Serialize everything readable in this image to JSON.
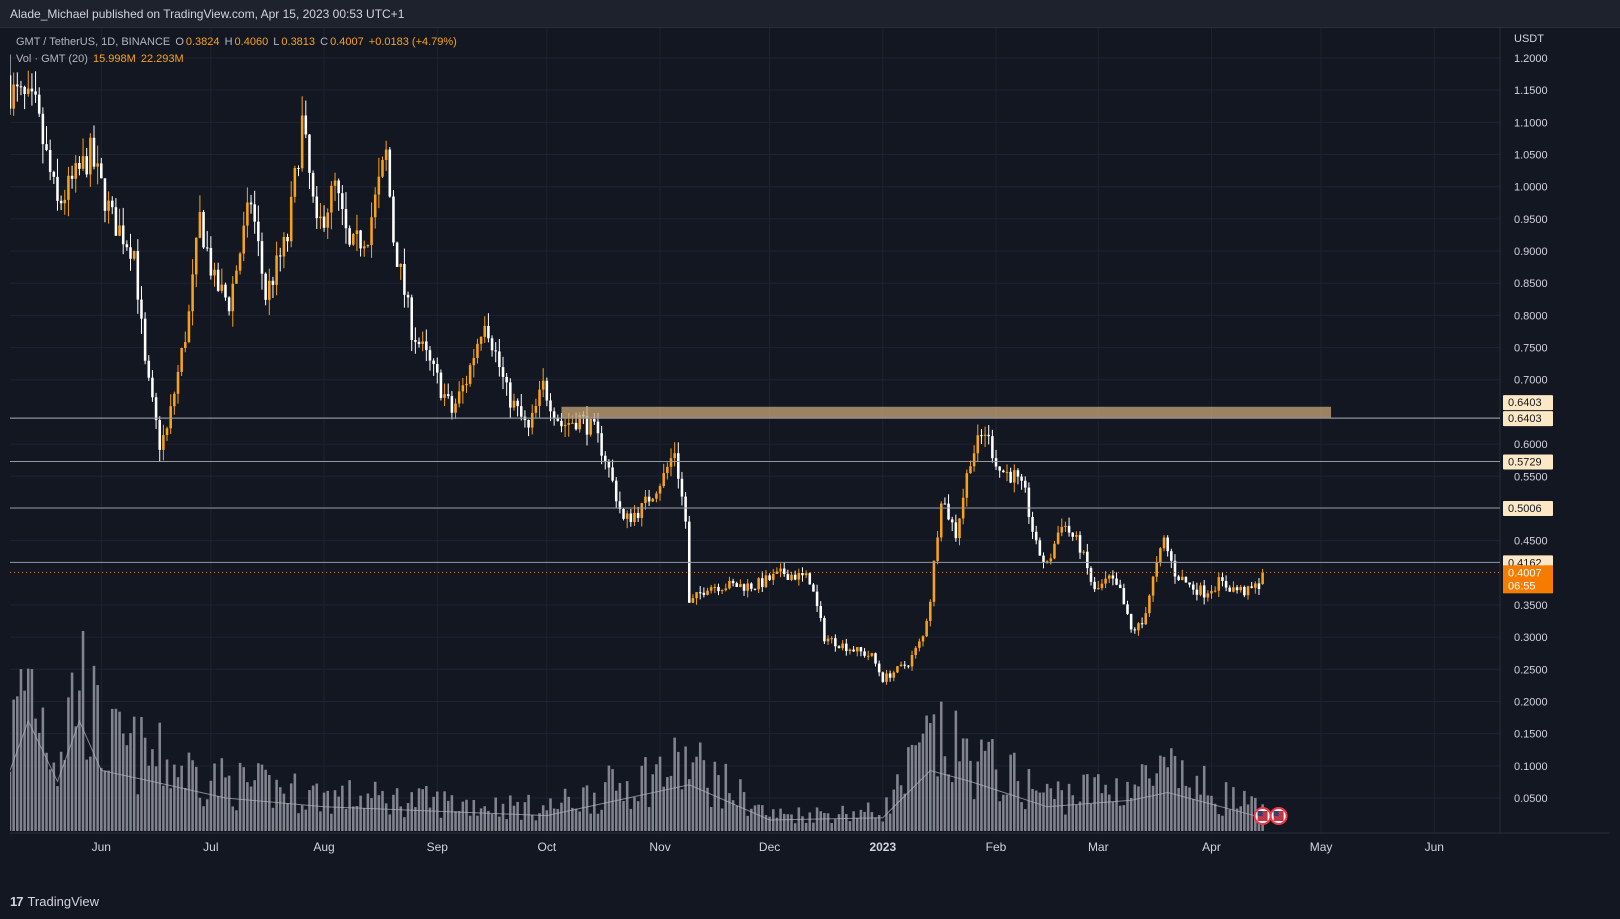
{
  "header": {
    "publish_line": "Alade_Michael published on TradingView.com, Apr 15, 2023 00:53 UTC+1"
  },
  "legend": {
    "symbol": "GMT / TetherUS, 1D, BINANCE",
    "open_label": "O",
    "open": "0.3824",
    "high_label": "H",
    "high": "0.4060",
    "low_label": "L",
    "low": "0.3813",
    "close_label": "C",
    "close": "0.4007",
    "change": "+0.0183 (+4.79%)",
    "volume_label": "Vol · GMT (20)",
    "volume_value": "15.998M",
    "volume_ma": "22.293M"
  },
  "footer": {
    "brand": "TradingView",
    "brand_mark": "17"
  },
  "colors": {
    "background": "#131722",
    "up": "#f7a21b",
    "down": "#ffffff",
    "grid": "#1f2330",
    "zone": "#c8a77a",
    "level_line": "#9598a1",
    "current_price": "#f57c00"
  },
  "chart_data": {
    "type": "candlestick",
    "symbol": "GMT / TetherUS",
    "interval": "1D",
    "exchange": "BINANCE",
    "currency": "USDT",
    "y_axis": {
      "ticks": [
        "1.2000",
        "1.1500",
        "1.1000",
        "1.0500",
        "1.0000",
        "0.9500",
        "0.9000",
        "0.8500",
        "0.8000",
        "0.7500",
        "0.7000",
        "0.6000",
        "0.5500",
        "0.5000",
        "0.4500",
        "0.3500",
        "0.3000",
        "0.2500",
        "0.2000",
        "0.1500",
        "0.1000",
        "0.0500"
      ],
      "range": [
        0,
        1.26
      ]
    },
    "x_axis": {
      "ticks": [
        {
          "label": "Jun",
          "date": "2022-06-01"
        },
        {
          "label": "Jul",
          "date": "2022-07-01"
        },
        {
          "label": "Aug",
          "date": "2022-08-01"
        },
        {
          "label": "Sep",
          "date": "2022-09-01"
        },
        {
          "label": "Oct",
          "date": "2022-10-01"
        },
        {
          "label": "Nov",
          "date": "2022-11-01"
        },
        {
          "label": "Dec",
          "date": "2022-12-01"
        },
        {
          "label": "2023",
          "date": "2023-01-01"
        },
        {
          "label": "Feb",
          "date": "2023-02-01"
        },
        {
          "label": "Mar",
          "date": "2023-03-01"
        },
        {
          "label": "Apr",
          "date": "2023-04-01"
        },
        {
          "label": "May",
          "date": "2023-05-01"
        },
        {
          "label": "Jun",
          "date": "2023-06-01"
        }
      ],
      "range": [
        "2022-05-07",
        "2023-06-19"
      ]
    },
    "series_start_date": "2022-05-07",
    "series_end_date": "2023-04-15",
    "price_path": [
      {
        "date": "2022-05-07",
        "close": 1.15
      },
      {
        "date": "2022-05-14",
        "close": 1.12
      },
      {
        "date": "2022-05-20",
        "close": 0.97
      },
      {
        "date": "2022-05-29",
        "close": 1.05
      },
      {
        "date": "2022-06-04",
        "close": 0.95
      },
      {
        "date": "2022-06-10",
        "close": 0.9
      },
      {
        "date": "2022-06-13",
        "close": 0.72
      },
      {
        "date": "2022-06-17",
        "close": 0.6
      },
      {
        "date": "2022-06-19",
        "close": 0.62
      },
      {
        "date": "2022-06-25",
        "close": 0.8
      },
      {
        "date": "2022-06-28",
        "close": 0.95
      },
      {
        "date": "2022-07-02",
        "close": 0.85
      },
      {
        "date": "2022-07-06",
        "close": 0.82
      },
      {
        "date": "2022-07-12",
        "close": 0.98
      },
      {
        "date": "2022-07-16",
        "close": 0.83
      },
      {
        "date": "2022-07-22",
        "close": 0.92
      },
      {
        "date": "2022-07-26",
        "close": 1.1
      },
      {
        "date": "2022-07-30",
        "close": 0.93
      },
      {
        "date": "2022-08-04",
        "close": 1.0
      },
      {
        "date": "2022-08-08",
        "close": 0.9
      },
      {
        "date": "2022-08-13",
        "close": 0.93
      },
      {
        "date": "2022-08-18",
        "close": 1.05
      },
      {
        "date": "2022-08-20",
        "close": 0.92
      },
      {
        "date": "2022-08-25",
        "close": 0.78
      },
      {
        "date": "2022-09-01",
        "close": 0.7
      },
      {
        "date": "2022-09-05",
        "close": 0.65
      },
      {
        "date": "2022-09-09",
        "close": 0.7
      },
      {
        "date": "2022-09-14",
        "close": 0.8
      },
      {
        "date": "2022-09-20",
        "close": 0.68
      },
      {
        "date": "2022-09-26",
        "close": 0.62
      },
      {
        "date": "2022-09-30",
        "close": 0.69
      },
      {
        "date": "2022-10-05",
        "close": 0.63
      },
      {
        "date": "2022-10-10",
        "close": 0.64
      },
      {
        "date": "2022-10-14",
        "close": 0.62
      },
      {
        "date": "2022-10-17",
        "close": 0.58
      },
      {
        "date": "2022-10-22",
        "close": 0.48
      },
      {
        "date": "2022-10-27",
        "close": 0.5
      },
      {
        "date": "2022-11-02",
        "close": 0.55
      },
      {
        "date": "2022-11-05",
        "close": 0.59
      },
      {
        "date": "2022-11-08",
        "close": 0.48
      },
      {
        "date": "2022-11-09",
        "close": 0.35
      },
      {
        "date": "2022-11-14",
        "close": 0.38
      },
      {
        "date": "2022-11-20",
        "close": 0.38
      },
      {
        "date": "2022-11-27",
        "close": 0.38
      },
      {
        "date": "2022-12-05",
        "close": 0.4
      },
      {
        "date": "2022-12-12",
        "close": 0.39
      },
      {
        "date": "2022-12-16",
        "close": 0.3
      },
      {
        "date": "2022-12-22",
        "close": 0.285
      },
      {
        "date": "2022-12-29",
        "close": 0.27
      },
      {
        "date": "2023-01-01",
        "close": 0.235
      },
      {
        "date": "2023-01-08",
        "close": 0.26
      },
      {
        "date": "2023-01-12",
        "close": 0.3
      },
      {
        "date": "2023-01-14",
        "close": 0.36
      },
      {
        "date": "2023-01-17",
        "close": 0.52
      },
      {
        "date": "2023-01-21",
        "close": 0.46
      },
      {
        "date": "2023-01-25",
        "close": 0.58
      },
      {
        "date": "2023-01-29",
        "close": 0.62
      },
      {
        "date": "2023-02-02",
        "close": 0.56
      },
      {
        "date": "2023-02-06",
        "close": 0.55
      },
      {
        "date": "2023-02-09",
        "close": 0.52
      },
      {
        "date": "2023-02-12",
        "close": 0.44
      },
      {
        "date": "2023-02-15",
        "close": 0.41
      },
      {
        "date": "2023-02-19",
        "close": 0.48
      },
      {
        "date": "2023-02-24",
        "close": 0.44
      },
      {
        "date": "2023-02-28",
        "close": 0.37
      },
      {
        "date": "2023-03-04",
        "close": 0.39
      },
      {
        "date": "2023-03-07",
        "close": 0.37
      },
      {
        "date": "2023-03-10",
        "close": 0.31
      },
      {
        "date": "2023-03-13",
        "close": 0.32
      },
      {
        "date": "2023-03-16",
        "close": 0.39
      },
      {
        "date": "2023-03-19",
        "close": 0.45
      },
      {
        "date": "2023-03-22",
        "close": 0.4
      },
      {
        "date": "2023-03-26",
        "close": 0.38
      },
      {
        "date": "2023-03-30",
        "close": 0.37
      },
      {
        "date": "2023-04-03",
        "close": 0.385
      },
      {
        "date": "2023-04-07",
        "close": 0.375
      },
      {
        "date": "2023-04-11",
        "close": 0.37
      },
      {
        "date": "2023-04-14",
        "close": 0.3824
      },
      {
        "date": "2023-04-15",
        "close": 0.4007
      }
    ],
    "last_candle": {
      "open": 0.3824,
      "high": 0.406,
      "low": 0.3813,
      "close": 0.4007
    },
    "resistance_zone": {
      "from_date": "2022-10-05",
      "to_date": "2023-06-19",
      "low": 0.6403,
      "high": 0.658
    },
    "horizontal_levels": [
      {
        "value": 0.6403,
        "label": "0.6403"
      },
      {
        "value": 0.6403,
        "label": "0.6403"
      },
      {
        "value": 0.5729,
        "label": "0.5729"
      },
      {
        "value": 0.5006,
        "label": "0.5006"
      },
      {
        "value": 0.4162,
        "label": "0.4162"
      }
    ],
    "current_price": {
      "value": 0.4007,
      "label": "0.4007",
      "countdown": "06:55"
    },
    "volume": {
      "ma_length": 20,
      "last": "15.998M",
      "ma": "22.293M",
      "relative_path": [
        {
          "date": "2022-05-07",
          "v": 0.55
        },
        {
          "date": "2022-05-12",
          "v": 1.0
        },
        {
          "date": "2022-05-20",
          "v": 0.45
        },
        {
          "date": "2022-05-26",
          "v": 1.0
        },
        {
          "date": "2022-06-01",
          "v": 0.55
        },
        {
          "date": "2022-06-15",
          "v": 0.45
        },
        {
          "date": "2022-07-05",
          "v": 0.3
        },
        {
          "date": "2022-08-01",
          "v": 0.22
        },
        {
          "date": "2022-09-01",
          "v": 0.18
        },
        {
          "date": "2022-10-01",
          "v": 0.14
        },
        {
          "date": "2022-11-09",
          "v": 0.42
        },
        {
          "date": "2022-12-01",
          "v": 0.1
        },
        {
          "date": "2023-01-01",
          "v": 0.12
        },
        {
          "date": "2023-01-14",
          "v": 0.55
        },
        {
          "date": "2023-01-25",
          "v": 0.45
        },
        {
          "date": "2023-02-15",
          "v": 0.22
        },
        {
          "date": "2023-03-10",
          "v": 0.28
        },
        {
          "date": "2023-03-20",
          "v": 0.35
        },
        {
          "date": "2023-04-15",
          "v": 0.12
        }
      ]
    }
  }
}
